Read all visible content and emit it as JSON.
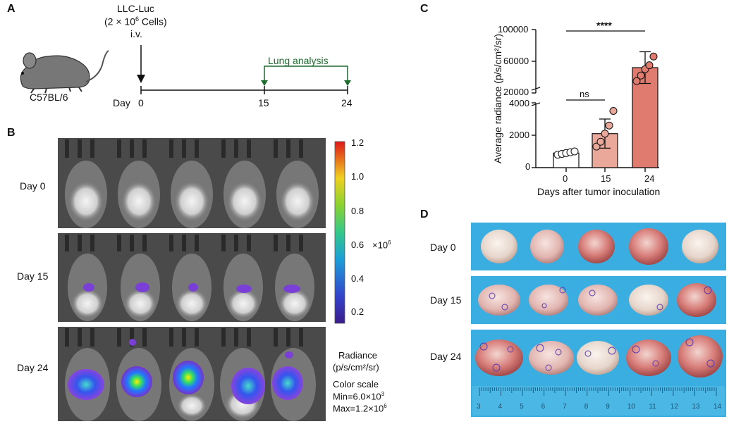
{
  "panelA": {
    "label": "A",
    "mouse_strain": "C57BL/6",
    "cell_name": "LLC-Luc",
    "cell_count": "(2 × 10",
    "cell_exp": "6",
    "cell_suffix": " Cells)",
    "route": "i.v.",
    "day_label": "Day",
    "days": [
      "0",
      "15",
      "24"
    ],
    "analysis": "Lung analysis",
    "analysis_color": "#1e6b2e"
  },
  "panelB": {
    "label": "B",
    "rows": [
      "Day 0",
      "Day 15",
      "Day 24"
    ],
    "scale_ticks": [
      "1.2",
      "1.0",
      "0.8",
      "0.6",
      "0.4",
      "0.2"
    ],
    "scale_multiplier": "×10",
    "scale_multiplier_exp": "6",
    "radiance_title": "Radiance",
    "radiance_units": "(p/s/cm²/sr)",
    "color_scale": "Color scale",
    "min_text": "Min=6.0×10",
    "min_exp": "3",
    "max_text": "Max=1.2×10",
    "max_exp": "6"
  },
  "panelC": {
    "label": "C",
    "chart_data": {
      "type": "bar",
      "categories": [
        "0",
        "15",
        "24"
      ],
      "values": [
        900,
        2100,
        52000
      ],
      "errors": [
        100,
        900,
        20000
      ],
      "points": [
        [
          800,
          850,
          900,
          950,
          1000
        ],
        [
          1300,
          1600,
          2100,
          2600,
          3500
        ],
        [
          35000,
          42000,
          50000,
          55000,
          66000
        ]
      ],
      "bar_colors": [
        "#ffffff",
        "#e9a89a",
        "#e07b70"
      ],
      "yticks_lower": [
        "0",
        "2000",
        "4000"
      ],
      "yticks_upper": [
        "20000",
        "60000",
        "100000"
      ],
      "ylabel": "Average radiance (p/s/cm²/sr)",
      "xlabel": "Days after tumor inoculation",
      "sig_ns": "ns",
      "sig_star": "****",
      "axis_break": true
    }
  },
  "panelD": {
    "label": "D",
    "rows": [
      "Day 0",
      "Day 15",
      "Day 24"
    ],
    "ruler_ticks": [
      "3",
      "4",
      "5",
      "6",
      "7",
      "8",
      "9",
      "10",
      "11",
      "12",
      "13",
      "14"
    ],
    "background": "#3aaee0"
  }
}
